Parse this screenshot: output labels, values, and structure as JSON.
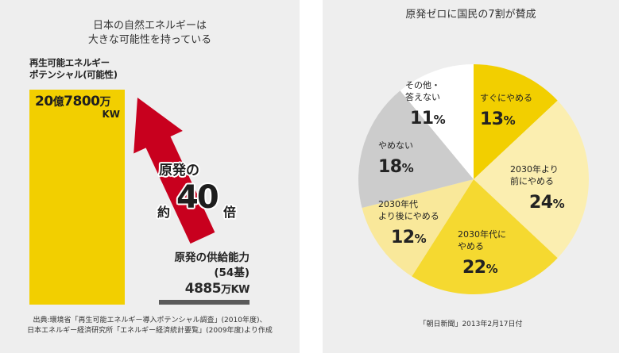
{
  "left_panel": {
    "title_lines": [
      "日本の自然エネルギーは",
      "大きな可能性を持っている"
    ],
    "renewable": {
      "label_lines": [
        "再生可能エネルギー",
        "ポテンシャル(可能性)"
      ],
      "value_num1": "20",
      "value_unit1": "億",
      "value_num2": "7800",
      "value_unit2": "万",
      "unit": "KW",
      "value_kw_man": 207800,
      "color": "#f2cf00"
    },
    "arrow": {
      "line1": "原発の",
      "prefix": "約",
      "multiplier": "40",
      "suffix": "倍",
      "color": "#c8001e"
    },
    "nuclear": {
      "label_line1": "原発の供給能力",
      "label_line2": "(54基)",
      "value_num": "4885",
      "value_unit": "万",
      "unit": "KW",
      "value_kw_man": 4885,
      "color": "#5a5a5a"
    },
    "source_lines": [
      "出典:環境省「再生可能エネルギー導入ポテンシャル調査」(2010年度)、",
      "日本エネルギー経済研究所「エネルギー経済統計要覧」(2009年度)より作成"
    ]
  },
  "right_panel": {
    "title": "原発ゼロに国民の7割が賛成",
    "source": "「朝日新聞」2013年2月17日付"
  },
  "chart_data": [
    {
      "type": "bar",
      "title": "日本の自然エネルギーは大きな可能性を持っている",
      "categories": [
        "再生可能エネルギーポテンシャル(可能性)",
        "原発の供給能力(54基)"
      ],
      "values": [
        207800,
        4885
      ],
      "unit": "万KW",
      "annotation": "原発の約40倍"
    },
    {
      "type": "pie",
      "title": "原発ゼロに国民の7割が賛成",
      "start": "12 o'clock, clockwise",
      "slices": [
        {
          "label_lines": [
            "すぐにやめる"
          ],
          "value": 13,
          "pct": "13",
          "color": "#f2cf00"
        },
        {
          "label_lines": [
            "2030年より",
            "前にやめる"
          ],
          "value": 24,
          "pct": "24",
          "color": "#fbeeb0"
        },
        {
          "label_lines": [
            "2030年代に",
            "やめる"
          ],
          "value": 22,
          "pct": "22",
          "color": "#f5d930"
        },
        {
          "label_lines": [
            "2030年代",
            "より後にやめる"
          ],
          "value": 12,
          "pct": "12",
          "color": "#f9e89a"
        },
        {
          "label_lines": [
            "やめない"
          ],
          "value": 18,
          "pct": "18",
          "color": "#cccccc"
        },
        {
          "label_lines": [
            "その他・",
            "答えない"
          ],
          "value": 11,
          "pct": "11",
          "color": "#ffffff"
        }
      ],
      "percent_sign": "%"
    }
  ]
}
